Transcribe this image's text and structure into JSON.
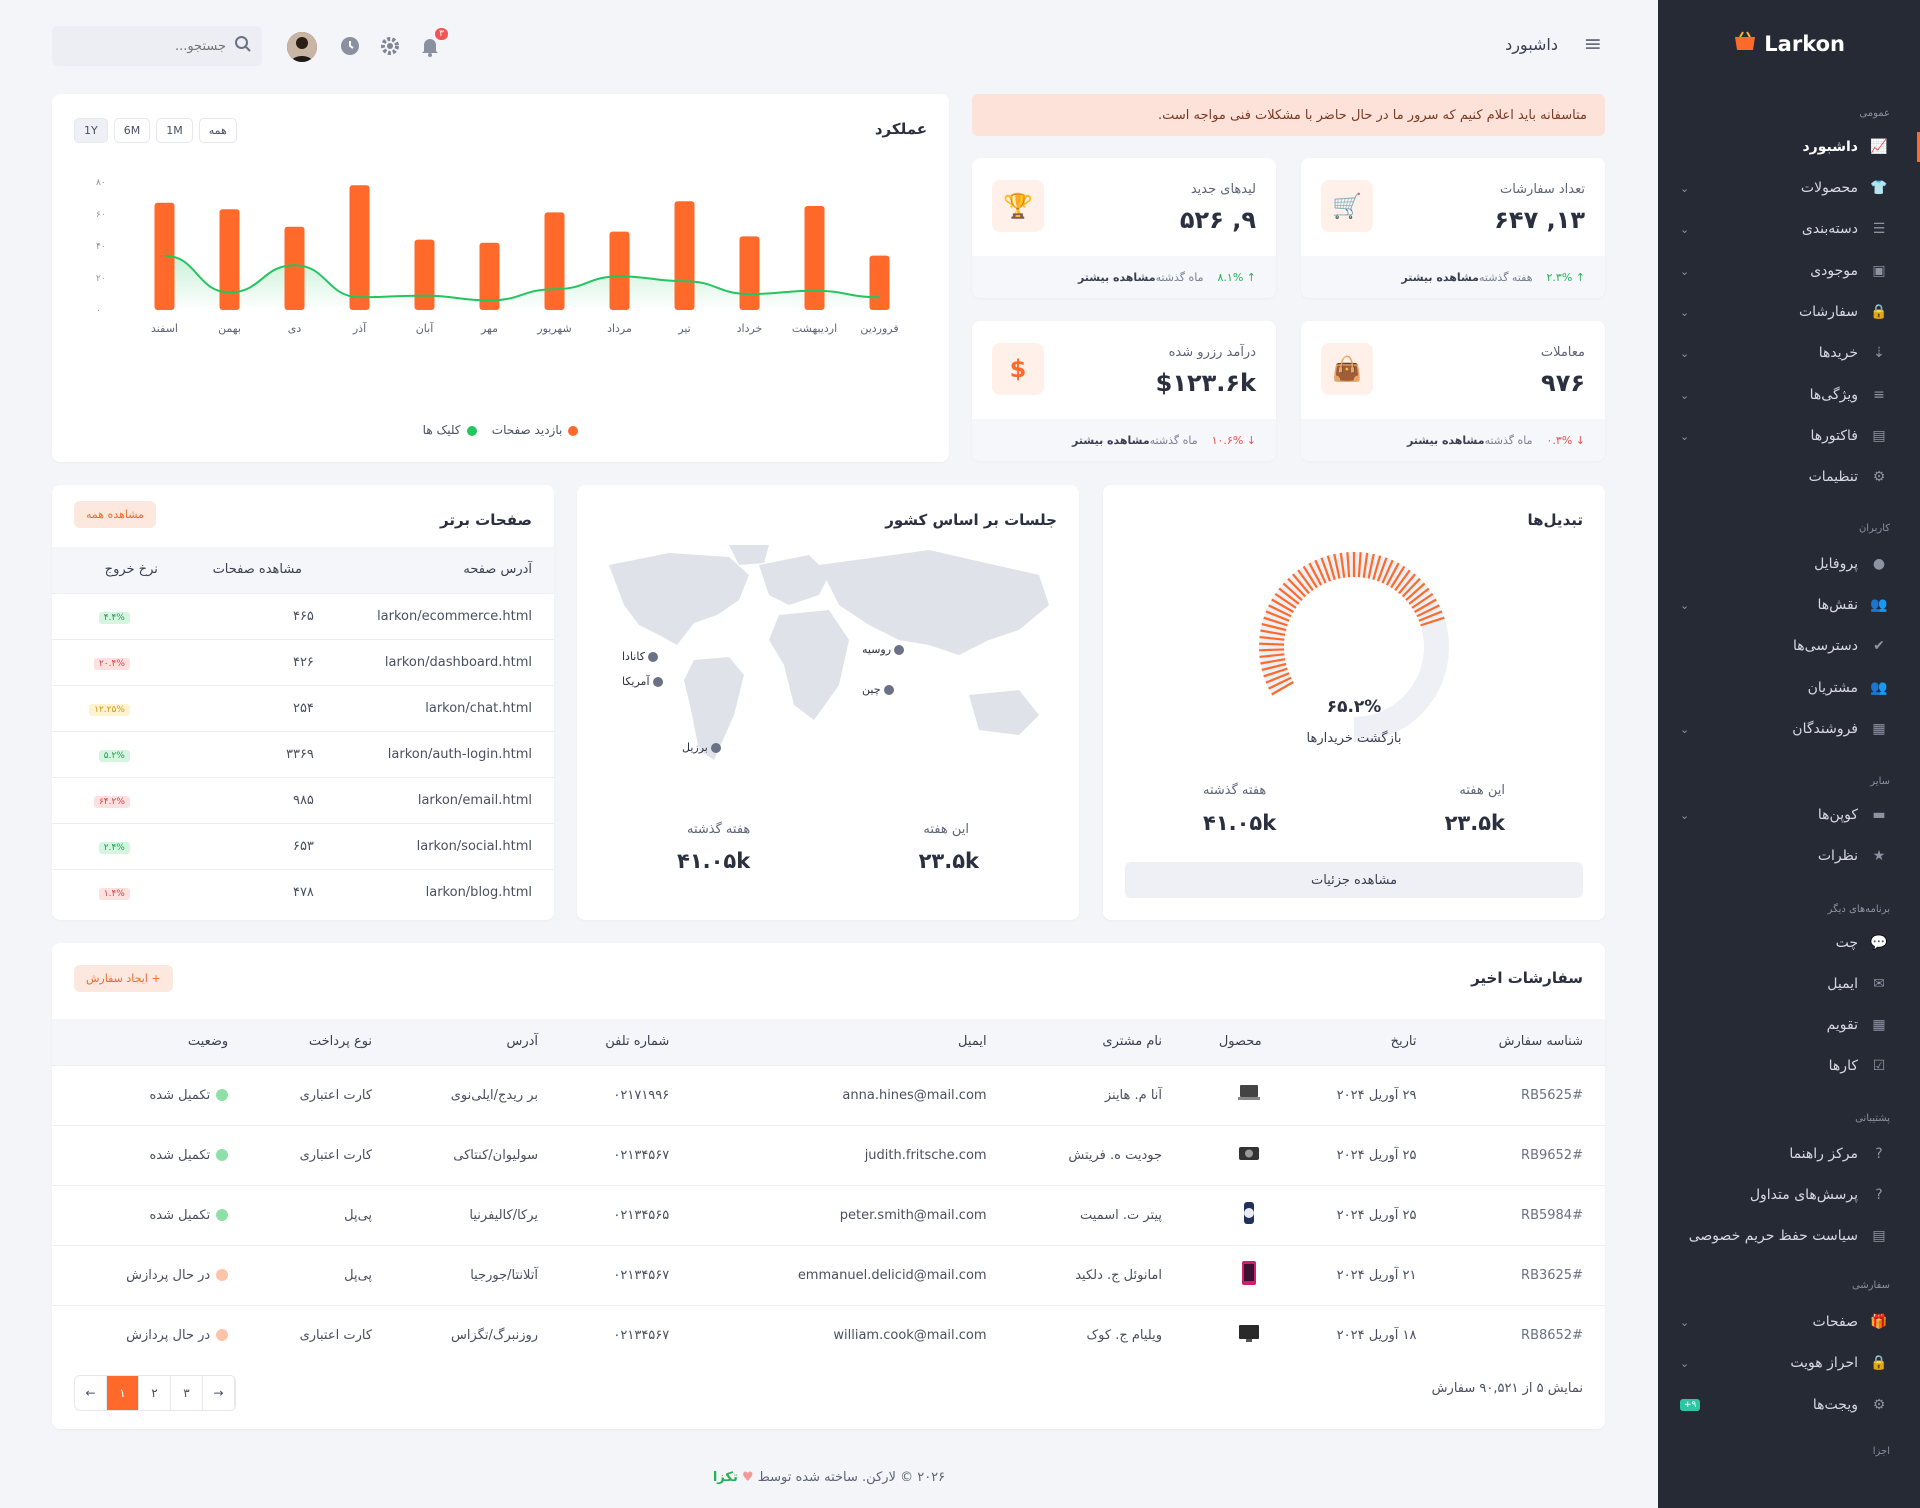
{
  "brand": "Larkon",
  "sidebar": {
    "sections": {
      "general": "عمومی",
      "users": "کاربران",
      "other": "سایر",
      "other_apps": "برنامه‌های دیگر",
      "support": "پشتیبانی",
      "custom": "سفارشی",
      "components": "اجزا"
    },
    "items": [
      {
        "label": "داشبورد"
      },
      {
        "label": "محصولات"
      },
      {
        "label": "دسته‌بندی"
      },
      {
        "label": "موجودی"
      },
      {
        "label": "سفارشات"
      },
      {
        "label": "خریدها"
      },
      {
        "label": "ویژگی‌ها"
      },
      {
        "label": "فاکتورها"
      },
      {
        "label": "تنظیمات"
      },
      {
        "label": "پروفایل"
      },
      {
        "label": "نقش‌ها"
      },
      {
        "label": "دسترسی‌ها"
      },
      {
        "label": "مشتریان"
      },
      {
        "label": "فروشندگان"
      },
      {
        "label": "کوپن‌ها"
      },
      {
        "label": "نظرات"
      },
      {
        "label": "چت"
      },
      {
        "label": "ایمیل"
      },
      {
        "label": "تقویم"
      },
      {
        "label": "کارها"
      },
      {
        "label": "مرکز راهنما"
      },
      {
        "label": "پرسش‌های متداول"
      },
      {
        "label": "سیاست حفظ حریم خصوصی"
      },
      {
        "label": "صفحات"
      },
      {
        "label": "احراز هویت"
      },
      {
        "label": "ویجت‌ها",
        "badge": "۹+"
      }
    ]
  },
  "topbar": {
    "title": "داشبورد",
    "search_placeholder": "جستجو...",
    "notif_count": "۳"
  },
  "alert": "متاسفانه باید اعلام کنیم که سرور ما در حال حاضر با مشکلات فنی مواجه است.",
  "stats": [
    {
      "label": "تعداد سفارشات",
      "value": "۱۳, ۶۴۷",
      "pct": "۲.۳%",
      "period": "هفته گذشته",
      "more": "مشاهده بیشتر",
      "dir": "up"
    },
    {
      "label": "لیدهای جدید",
      "value": "۹, ۵۲۶",
      "pct": "۸.۱%",
      "period": "ماه گذشته",
      "more": "مشاهده بیشتر",
      "dir": "up"
    },
    {
      "label": "معاملات",
      "value": "۹۷۶",
      "pct": "۰.۳%",
      "period": "ماه گذشته",
      "more": "مشاهده بیشتر",
      "dir": "down"
    },
    {
      "label": "درآمد رزرو شده",
      "value": "$۱۲۳.۶k",
      "pct": "۱۰.۶%",
      "period": "ماه گذشته",
      "more": "مشاهده بیشتر",
      "dir": "down"
    }
  ],
  "performance": {
    "title": "عملکرد",
    "ranges": [
      "همه",
      "1M",
      "6M",
      "1Y"
    ]
  },
  "chart_data": {
    "type": "bar",
    "categories": [
      "فروردین",
      "اردیبهشت",
      "خرداد",
      "تیر",
      "مرداد",
      "شهریور",
      "مهر",
      "آبان",
      "آذر",
      "دی",
      "بهمن",
      "اسفند"
    ],
    "ylim": [
      0,
      80
    ],
    "yticks": [
      "۰",
      "۲۰",
      "۴۰",
      "۶۰",
      "۸۰"
    ],
    "series": [
      {
        "name": "بازدید صفحات",
        "type": "bar",
        "color": "#ff6a2b",
        "values": [
          34,
          65,
          46,
          68,
          49,
          61,
          42,
          44,
          78,
          52,
          63,
          67
        ]
      },
      {
        "name": "کلیک ها",
        "type": "area",
        "color": "#22c55e",
        "values": [
          8,
          12,
          10,
          18,
          21,
          13,
          6,
          9,
          8,
          28,
          11,
          34
        ]
      }
    ]
  },
  "conversions": {
    "title": "تبدیل‌ها",
    "percent_label": "۶۵.۲%",
    "percent": 65.2,
    "sub": "بازگشت خریدارها",
    "this_week_label": "این هفته",
    "this_week": "۲۳.۵k",
    "last_week_label": "هفته گذشته",
    "last_week": "۴۱.۰۵k",
    "details": "مشاهده جزئیات"
  },
  "sessions": {
    "title": "جلسات بر اساس کشور",
    "markers": [
      "کانادا",
      "آمریکا",
      "برزیل",
      "روسیه",
      "چین"
    ],
    "this_week_label": "این هفته",
    "this_week": "۲۳.۵k",
    "last_week_label": "هفته گذشته",
    "last_week": "۴۱.۰۵k"
  },
  "top_pages": {
    "title": "صفحات برتر",
    "view_all": "مشاهده همه",
    "headers": [
      "آدرس صفحه",
      "مشاهده صفحات",
      "نرخ خروج"
    ],
    "rows": [
      {
        "url": "larkon/ecommerce.html",
        "views": "۴۶۵",
        "rate": "۴.۴%",
        "tone": "g"
      },
      {
        "url": "larkon/dashboard.html",
        "views": "۴۲۶",
        "rate": "۲۰.۴%",
        "tone": "r"
      },
      {
        "url": "larkon/chat.html",
        "views": "۲۵۴",
        "rate": "۱۲.۲۵%",
        "tone": "y"
      },
      {
        "url": "larkon/auth-login.html",
        "views": "۳۳۶۹",
        "rate": "۵.۲%",
        "tone": "g"
      },
      {
        "url": "larkon/email.html",
        "views": "۹۸۵",
        "rate": "۶۴.۲%",
        "tone": "r"
      },
      {
        "url": "larkon/social.html",
        "views": "۶۵۳",
        "rate": "۲.۴%",
        "tone": "g"
      },
      {
        "url": "larkon/blog.html",
        "views": "۴۷۸",
        "rate": "۱.۴%",
        "tone": "r"
      }
    ]
  },
  "orders": {
    "title": "سفارشات اخیر",
    "create": "ایجاد سفارش",
    "headers": [
      "شناسه سفارش",
      "تاریخ",
      "محصول",
      "نام مشتری",
      "ایمیل",
      "شماره تلفن",
      "آدرس",
      "نوع پرداخت",
      "وضعیت"
    ],
    "rows": [
      {
        "id": "#RB5625",
        "date": "۲۹ آوریل ۲۰۲۴",
        "product": "laptop-icon",
        "name": "آنا م. هاینز",
        "email": "anna.hines@mail.com",
        "phone": "۰۲۱۷۱۹۹۶",
        "addr": "بر ریدج/ایلی‌نوی",
        "pay": "کارت اعتباری",
        "status": "تکمیل شده",
        "state": "done"
      },
      {
        "id": "#RB9652",
        "date": "۲۵ آوریل ۲۰۲۴",
        "product": "camera-icon",
        "name": "جودیت ه. فریتش",
        "email": "judith.fritsche.com",
        "phone": "۰۲۱۳۴۵۶۷",
        "addr": "سولیوان/کنتاکی",
        "pay": "کارت اعتباری",
        "status": "تکمیل شده",
        "state": "done"
      },
      {
        "id": "#RB5984",
        "date": "۲۵ آوریل ۲۰۲۴",
        "product": "watch-icon",
        "name": "پیتر ت. اسمیت",
        "email": "peter.smith@mail.com",
        "phone": "۰۲۱۳۴۵۶۵",
        "addr": "یرکا/کالیفرنیا",
        "pay": "پی‌پل",
        "status": "تکمیل شده",
        "state": "done"
      },
      {
        "id": "#RB3625",
        "date": "۲۱ آوریل ۲۰۲۴",
        "product": "phone-icon",
        "name": "امانوئل ج. دلکید",
        "email": "emmanuel.delicid@mail.com",
        "phone": "۰۲۱۳۴۵۶۷",
        "addr": "آتلانتا/جورجیا",
        "pay": "پی‌پل",
        "status": "در حال پردازش",
        "state": "pending"
      },
      {
        "id": "#RB8652",
        "date": "۱۸ آوریل ۲۰۲۴",
        "product": "monitor-icon",
        "name": "ویلیام ج. کوک",
        "email": "william.cook@mail.com",
        "phone": "۰۲۱۳۴۵۶۷",
        "addr": "روزنبرگ/تگزاس",
        "pay": "کارت اعتباری",
        "status": "در حال پردازش",
        "state": "pending"
      }
    ],
    "summary": "نمایش ۵ از ۹۰,۵۲۱ سفارش",
    "pages": [
      "۱",
      "۲",
      "۳"
    ]
  },
  "footer": {
    "text": "۲۰۲۶ © لارکن. ساخته شده توسط",
    "author": "تکزا"
  }
}
